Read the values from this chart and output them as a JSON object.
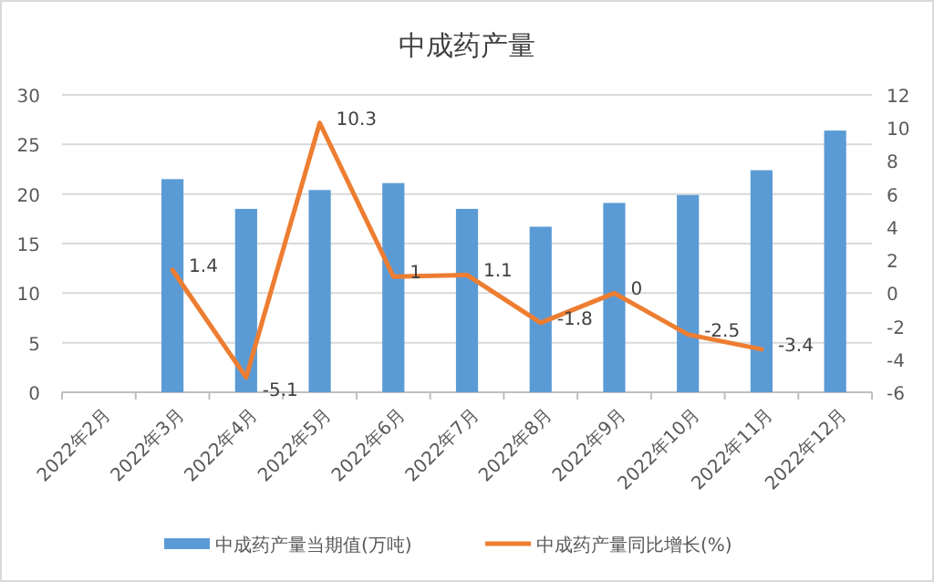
{
  "chart_data": {
    "type": "bar",
    "title": "中成药产量",
    "categories": [
      "2022年2月",
      "2022年3月",
      "2022年4月",
      "2022年5月",
      "2022年6月",
      "2022年7月",
      "2022年8月",
      "2022年9月",
      "2022年10月",
      "2022年11月",
      "2022年12月"
    ],
    "series": [
      {
        "name": "中成药产量当期值(万吨)",
        "color": "#5b9bd5",
        "values": [
          null,
          21.5,
          18.5,
          20.4,
          21.1,
          18.5,
          16.7,
          19.1,
          19.9,
          22.4,
          26.4
        ]
      },
      {
        "name": "中成药产量同比增长(%)",
        "type": "line",
        "axis": "y2",
        "color": "#ed7d31",
        "values": [
          null,
          1.4,
          -5.1,
          10.3,
          1,
          1.1,
          -1.8,
          0,
          -2.5,
          -3.4,
          null
        ],
        "value_labels": [
          null,
          "1.4",
          "-5.1",
          "10.3",
          "1",
          "1.1",
          "-1.8",
          "0",
          "-2.5",
          "-3.4",
          null
        ]
      }
    ],
    "ylim": [
      0,
      30
    ],
    "yticks": [
      0,
      5,
      10,
      15,
      20,
      25,
      30
    ],
    "y2lim": [
      -6,
      12
    ],
    "y2ticks": [
      -6,
      -4,
      -2,
      0,
      2,
      4,
      6,
      8,
      10,
      12
    ],
    "grid": "y",
    "legend": "bottom"
  }
}
